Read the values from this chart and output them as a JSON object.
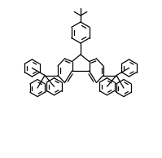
{
  "bg_color": "#ffffff",
  "line_color": "#000000",
  "line_width": 0.9,
  "fig_width": 1.99,
  "fig_height": 1.94,
  "dpi": 100,
  "xlim": [
    0,
    199
  ],
  "ylim": [
    0,
    194
  ]
}
